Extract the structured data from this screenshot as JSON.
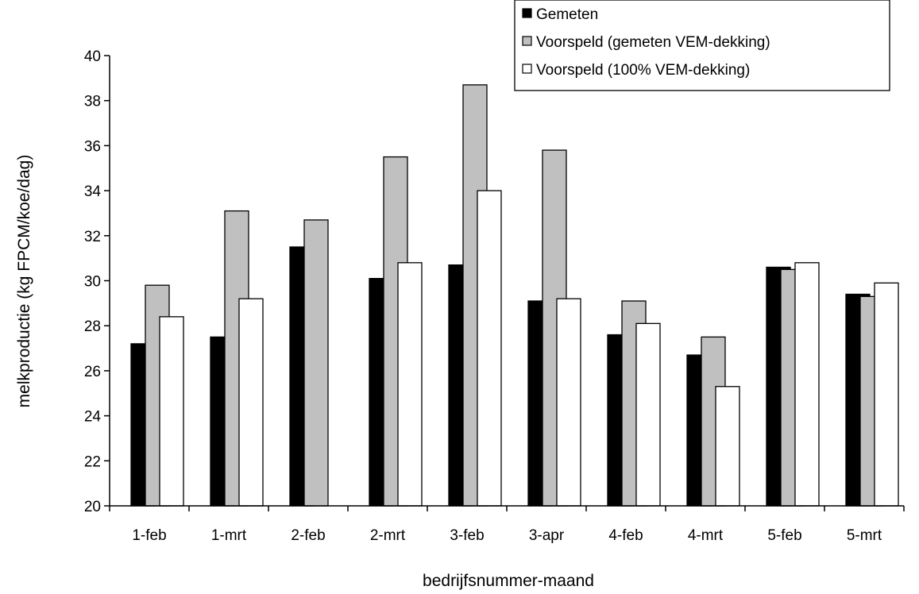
{
  "chart_data": {
    "type": "bar",
    "categories": [
      "1-feb",
      "1-mrt",
      "2-feb",
      "2-mrt",
      "3-feb",
      "3-apr",
      "4-feb",
      "4-mrt",
      "5-feb",
      "5-mrt"
    ],
    "series": [
      {
        "name": "Gemeten",
        "color": "#000000",
        "values": [
          27.2,
          27.5,
          31.5,
          30.1,
          30.7,
          29.1,
          27.6,
          26.7,
          30.6,
          29.4
        ]
      },
      {
        "name": "Voorspeld (gemeten VEM-dekking)",
        "color": "#c0c0c0",
        "values": [
          29.8,
          33.1,
          32.7,
          35.5,
          38.7,
          35.8,
          29.1,
          27.5,
          30.5,
          29.3
        ]
      },
      {
        "name": "Voorspeld (100% VEM-dekking)",
        "color": "#ffffff",
        "values": [
          28.4,
          29.2,
          null,
          30.8,
          34.0,
          29.2,
          28.1,
          25.3,
          30.8,
          29.9
        ]
      }
    ],
    "xlabel": "bedrijfsnummer-maand",
    "ylabel": "melkproductie (kg FPCM/koe/dag)",
    "ylim": [
      20,
      40
    ],
    "yticks": [
      20,
      22,
      24,
      26,
      28,
      30,
      32,
      34,
      36,
      38,
      40
    ],
    "grid": false,
    "legend_position": "top-right"
  }
}
